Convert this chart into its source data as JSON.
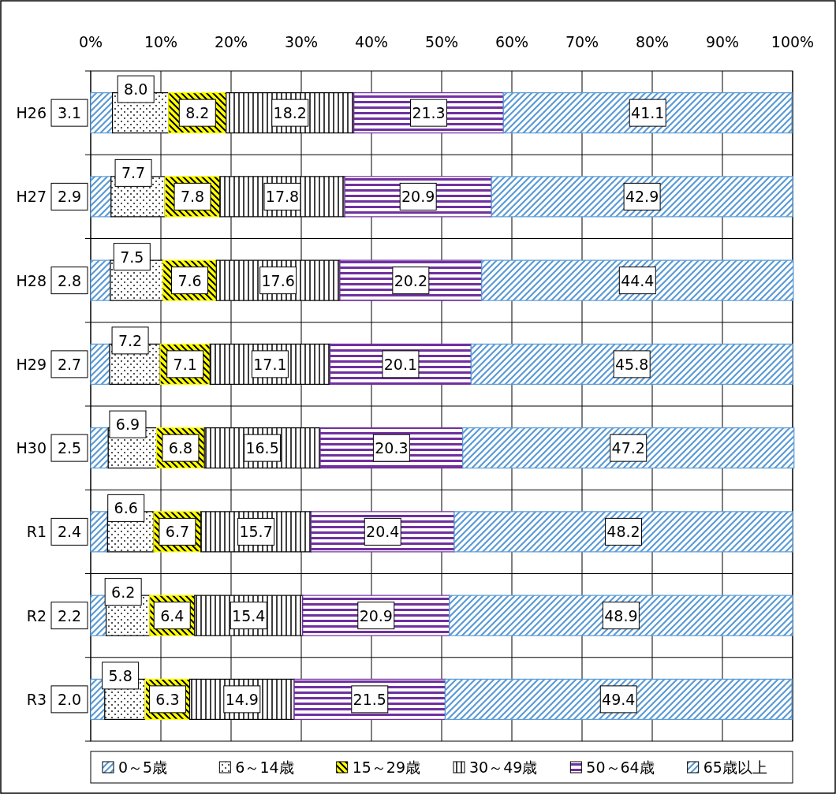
{
  "chart_data": {
    "type": "bar",
    "orientation": "horizontal",
    "stacked": true,
    "grid": true,
    "legend": "bottom",
    "categories": [
      "H26",
      "H27",
      "H28",
      "H29",
      "H30",
      "R1",
      "R2",
      "R3"
    ],
    "xlim": [
      0,
      100
    ],
    "xticks": [
      {
        "value": 0,
        "label": "0%"
      },
      {
        "value": 10,
        "label": "10%"
      },
      {
        "value": 20,
        "label": "20%"
      },
      {
        "value": 30,
        "label": "30%"
      },
      {
        "value": 40,
        "label": "40%"
      },
      {
        "value": 50,
        "label": "50%"
      },
      {
        "value": 60,
        "label": "60%"
      },
      {
        "value": 70,
        "label": "70%"
      },
      {
        "value": 80,
        "label": "80%"
      },
      {
        "value": 90,
        "label": "90%"
      },
      {
        "value": 100,
        "label": "100%"
      }
    ],
    "series": [
      {
        "name": "0～5歳",
        "color": "#5b9bd5",
        "values": [
          3.1,
          2.9,
          2.8,
          2.7,
          2.5,
          2.4,
          2.2,
          2.0
        ],
        "value_labels": [
          "3.1",
          "2.9",
          "2.8",
          "2.7",
          "2.5",
          "2.4",
          "2.2",
          "2.0"
        ]
      },
      {
        "name": "6～14歳",
        "color": "#000000",
        "values": [
          8.0,
          7.7,
          7.5,
          7.2,
          6.9,
          6.6,
          6.2,
          5.8
        ],
        "value_labels": [
          "8.0",
          "7.7",
          "7.5",
          "7.2",
          "6.9",
          "6.6",
          "6.2",
          "5.8"
        ]
      },
      {
        "name": "15～29歳",
        "color": "#ffff00",
        "values": [
          8.2,
          7.8,
          7.6,
          7.1,
          6.8,
          6.7,
          6.4,
          6.3
        ],
        "value_labels": [
          "8.2",
          "7.8",
          "7.6",
          "7.1",
          "6.8",
          "6.7",
          "6.4",
          "6.3"
        ]
      },
      {
        "name": "30～49歳",
        "color": "#000000",
        "values": [
          18.2,
          17.8,
          17.6,
          17.1,
          16.5,
          15.7,
          15.4,
          14.9
        ],
        "value_labels": [
          "18.2",
          "17.8",
          "17.6",
          "17.1",
          "16.5",
          "15.7",
          "15.4",
          "14.9"
        ]
      },
      {
        "name": "50～64歳",
        "color": "#7030a0",
        "values": [
          21.3,
          20.9,
          20.2,
          20.1,
          20.3,
          20.4,
          20.9,
          21.5
        ],
        "value_labels": [
          "21.3",
          "20.9",
          "20.2",
          "20.1",
          "20.3",
          "20.4",
          "20.9",
          "21.5"
        ]
      },
      {
        "name": "65歳以上",
        "color": "#5b9bd5",
        "values": [
          41.1,
          42.9,
          44.4,
          45.8,
          47.2,
          48.2,
          48.9,
          49.4
        ],
        "value_labels": [
          "41.1",
          "42.9",
          "44.4",
          "45.8",
          "47.2",
          "48.2",
          "48.9",
          "49.4"
        ]
      }
    ]
  }
}
